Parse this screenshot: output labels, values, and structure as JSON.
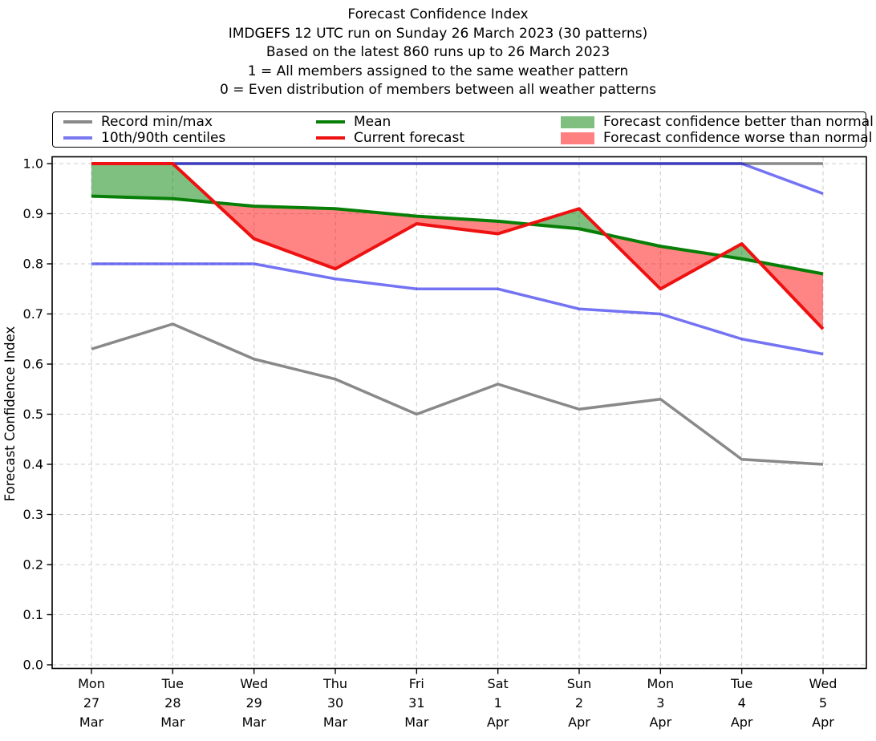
{
  "header": {
    "title_lines": [
      "Forecast Confidence Index",
      "IMDGEFS 12 UTC run on Sunday 26 March 2023 (30 patterns)",
      "Based on the latest 860 runs up to 26 March 2023",
      "1 = All members assigned to the same weather pattern",
      "0 = Even distribution of members between all weather patterns"
    ]
  },
  "legend": {
    "items": [
      {
        "id": "record-minmax",
        "label": "Record min/max",
        "swatch": "line",
        "color": "#898989"
      },
      {
        "id": "mean",
        "label": "Mean",
        "swatch": "line",
        "color": "#077f07"
      },
      {
        "id": "better",
        "label": "Forecast confidence better than normal",
        "swatch": "patch",
        "color": "#80bf80"
      },
      {
        "id": "centiles",
        "label": "10th/90th centiles",
        "swatch": "line",
        "color": "#7878f0"
      },
      {
        "id": "current-forecast",
        "label": "Current forecast",
        "swatch": "line",
        "color": "#ee1111"
      },
      {
        "id": "worse",
        "label": "Forecast confidence worse than normal",
        "swatch": "patch",
        "color": "#ff8080"
      }
    ]
  },
  "chart_data": {
    "type": "line",
    "title": "Forecast Confidence Index",
    "xlabel": "",
    "ylabel": "Forecast Confidence Index",
    "ylim": [
      0.0,
      1.0
    ],
    "grid": true,
    "legend_position": "top",
    "ytick_labels": [
      "0.0",
      "0.1",
      "0.2",
      "0.3",
      "0.4",
      "0.5",
      "0.6",
      "0.7",
      "0.8",
      "0.9",
      "1.0"
    ],
    "categories": [
      [
        "Mon",
        "27",
        "Mar"
      ],
      [
        "Tue",
        "28",
        "Mar"
      ],
      [
        "Wed",
        "29",
        "Mar"
      ],
      [
        "Thu",
        "30",
        "Mar"
      ],
      [
        "Fri",
        "31",
        "Mar"
      ],
      [
        "Sat",
        "1",
        "Apr"
      ],
      [
        "Sun",
        "2",
        "Apr"
      ],
      [
        "Mon",
        "3",
        "Apr"
      ],
      [
        "Tue",
        "4",
        "Apr"
      ],
      [
        "Wed",
        "5",
        "Apr"
      ]
    ],
    "series": [
      {
        "name": "Record max",
        "color": "#898989",
        "width": 3.5,
        "values": [
          1.0,
          1.0,
          1.0,
          1.0,
          1.0,
          1.0,
          1.0,
          1.0,
          1.0,
          1.0
        ]
      },
      {
        "name": "Record min",
        "color": "#898989",
        "width": 3.5,
        "values": [
          0.63,
          0.68,
          0.61,
          0.57,
          0.5,
          0.56,
          0.51,
          0.53,
          0.41,
          0.4
        ]
      },
      {
        "name": "90th centile",
        "color": "rgba(0,0,235,0.55)",
        "width": 3.5,
        "values": [
          1.0,
          1.0,
          1.0,
          1.0,
          1.0,
          1.0,
          1.0,
          1.0,
          1.0,
          0.94
        ]
      },
      {
        "name": "10th centile",
        "color": "rgba(0,0,235,0.55)",
        "width": 3.5,
        "values": [
          0.8,
          0.8,
          0.8,
          0.77,
          0.75,
          0.75,
          0.71,
          0.7,
          0.65,
          0.62
        ]
      },
      {
        "name": "Mean",
        "color": "#077f07",
        "width": 4,
        "values": [
          0.935,
          0.93,
          0.915,
          0.91,
          0.895,
          0.885,
          0.87,
          0.835,
          0.81,
          0.78
        ]
      },
      {
        "name": "Current forecast",
        "color": "#ee1111",
        "width": 4,
        "values": [
          1.0,
          1.0,
          0.85,
          0.79,
          0.88,
          0.86,
          0.91,
          0.75,
          0.84,
          0.67
        ]
      }
    ],
    "fill_between": {
      "series_a": "Current forecast",
      "series_b": "Mean",
      "positive_color": "rgba(0,128,0,0.5)",
      "positive_label": "Forecast confidence better than normal",
      "negative_color": "rgba(255,0,0,0.48)",
      "negative_label": "Forecast confidence worse than normal"
    }
  }
}
